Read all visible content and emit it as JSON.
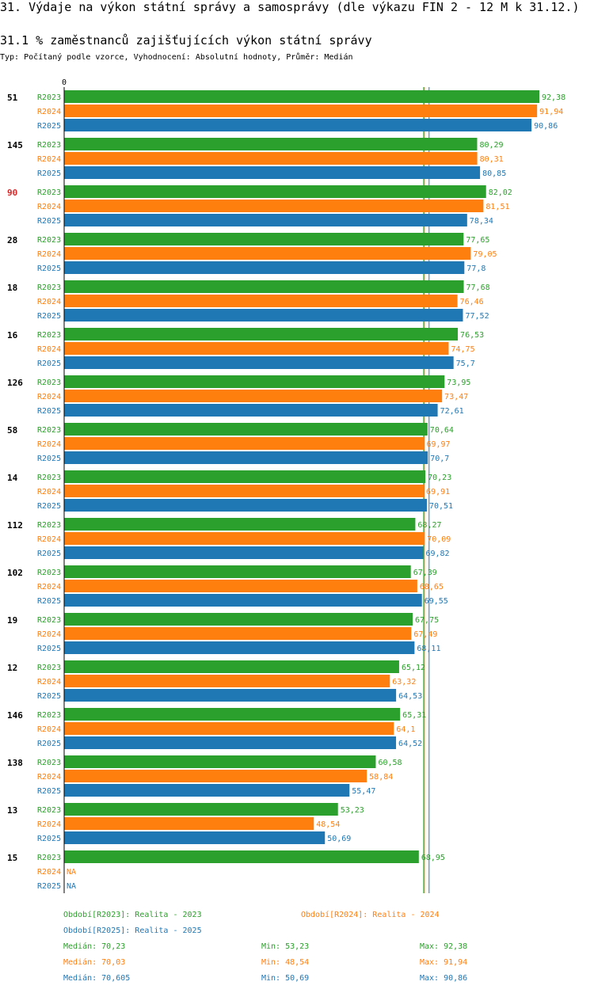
{
  "header": {
    "title": "31. Výdaje na výkon státní správy a samosprávy (dle výkazu FIN 2 - 12 M k 31.12.)",
    "subtitle": "31.1 % zaměstnanců zajišťujících výkon státní správy",
    "type_line": "Typ: Počítaný podle vzorce, Vyhodnocení: Absolutní hodnoty, Průměr: Medián"
  },
  "colors": {
    "R2023": "#2ca02c",
    "R2024": "#ff7f0e",
    "R2025": "#1f77b4",
    "highlight": "#d62728"
  },
  "chart_data": {
    "type": "bar",
    "orientation": "horizontal",
    "axis_zero_label": "0",
    "series_names": [
      "R2023",
      "R2024",
      "R2025"
    ],
    "highlight_group": "90",
    "groups": [
      {
        "label": "51",
        "values": [
          92.38,
          91.94,
          90.86
        ]
      },
      {
        "label": "145",
        "values": [
          80.29,
          80.31,
          80.85
        ]
      },
      {
        "label": "90",
        "values": [
          82.02,
          81.51,
          78.34
        ]
      },
      {
        "label": "28",
        "values": [
          77.65,
          79.05,
          77.8
        ]
      },
      {
        "label": "18",
        "values": [
          77.68,
          76.46,
          77.52
        ]
      },
      {
        "label": "16",
        "values": [
          76.53,
          74.75,
          75.7
        ]
      },
      {
        "label": "126",
        "values": [
          73.95,
          73.47,
          72.61
        ]
      },
      {
        "label": "58",
        "values": [
          70.64,
          69.97,
          70.7
        ]
      },
      {
        "label": "14",
        "values": [
          70.23,
          69.91,
          70.51
        ]
      },
      {
        "label": "112",
        "values": [
          68.27,
          70.09,
          69.82
        ]
      },
      {
        "label": "102",
        "values": [
          67.39,
          68.65,
          69.55
        ]
      },
      {
        "label": "19",
        "values": [
          67.75,
          67.49,
          68.11
        ]
      },
      {
        "label": "12",
        "values": [
          65.12,
          63.32,
          64.53
        ]
      },
      {
        "label": "146",
        "values": [
          65.31,
          64.1,
          64.52
        ]
      },
      {
        "label": "138",
        "values": [
          60.58,
          58.84,
          55.47
        ]
      },
      {
        "label": "13",
        "values": [
          53.23,
          48.54,
          50.69
        ]
      },
      {
        "label": "15",
        "values": [
          68.95,
          null,
          null
        ]
      }
    ],
    "value_labels": [
      [
        "92,38",
        "91,94",
        "90,86"
      ],
      [
        "80,29",
        "80,31",
        "80,85"
      ],
      [
        "82,02",
        "81,51",
        "78,34"
      ],
      [
        "77,65",
        "79,05",
        "77,8"
      ],
      [
        "77,68",
        "76,46",
        "77,52"
      ],
      [
        "76,53",
        "74,75",
        "75,7"
      ],
      [
        "73,95",
        "73,47",
        "72,61"
      ],
      [
        "70,64",
        "69,97",
        "70,7"
      ],
      [
        "70,23",
        "69,91",
        "70,51"
      ],
      [
        "68,27",
        "70,09",
        "69,82"
      ],
      [
        "67,39",
        "68,65",
        "69,55"
      ],
      [
        "67,75",
        "67,49",
        "68,11"
      ],
      [
        "65,12",
        "63,32",
        "64,53"
      ],
      [
        "65,31",
        "64,1",
        "64,52"
      ],
      [
        "60,58",
        "58,84",
        "55,47"
      ],
      [
        "53,23",
        "48,54",
        "50,69"
      ],
      [
        "68,95",
        "NA",
        "NA"
      ]
    ],
    "medians": [
      70.23,
      70.03,
      70.605
    ]
  },
  "legend": {
    "period_2023": "Období[R2023]: Realita - 2023",
    "period_2024": "Období[R2024]: Realita - 2024",
    "period_2025": "Období[R2025]: Realita - 2025",
    "stats": [
      {
        "median": "Medián: 70,23",
        "min": "Min: 53,23",
        "max": "Max: 92,38"
      },
      {
        "median": "Medián: 70,03",
        "min": "Min: 48,54",
        "max": "Max: 91,94"
      },
      {
        "median": "Medián: 70,605",
        "min": "Min: 50,69",
        "max": "Max: 90,86"
      }
    ]
  }
}
